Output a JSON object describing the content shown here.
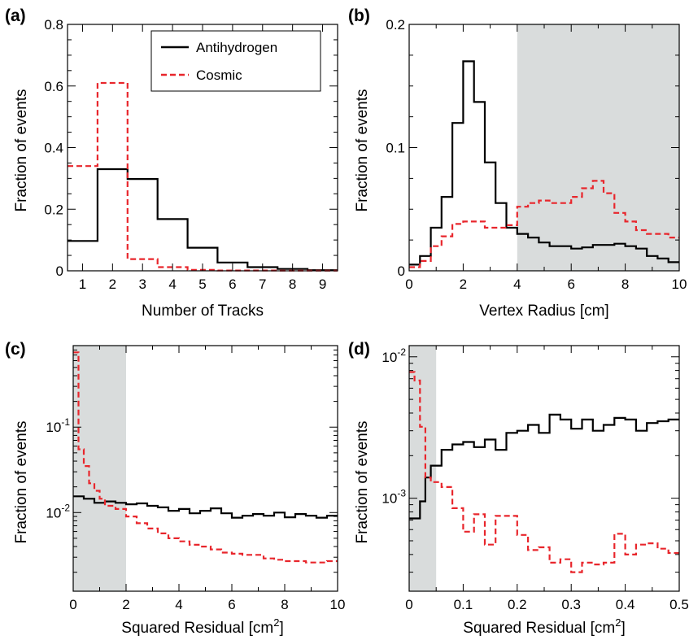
{
  "colors": {
    "antihydrogen": "#000000",
    "cosmic": "#e8262c",
    "shade": "#d9dcdc"
  },
  "legend": {
    "antihydrogen": "Antihydrogen",
    "cosmic": "Cosmic"
  },
  "chart_data": [
    {
      "panel": "(a)",
      "type": "histogram",
      "xlabel": "Number of Tracks",
      "ylabel": "Fraction of events",
      "xlim": [
        0.5,
        9.5
      ],
      "ylim": [
        0,
        0.8
      ],
      "yscale": "linear",
      "x_ticks": [
        1,
        2,
        3,
        4,
        5,
        6,
        7,
        8,
        9
      ],
      "y_ticks": [
        0,
        0.2,
        0.4,
        0.6,
        0.8
      ],
      "y_tick_labels": [
        "0",
        "0.2",
        "0.4",
        "0.6",
        "0.8"
      ],
      "legend_position": "top-right",
      "shaded_region": null,
      "series": [
        {
          "name": "Antihydrogen",
          "style": "solid",
          "bin_edges": [
            0.5,
            1.5,
            2.5,
            3.5,
            4.5,
            5.5,
            6.5,
            7.5,
            8.5,
            9.5
          ],
          "values": [
            0.097,
            0.33,
            0.298,
            0.168,
            0.075,
            0.027,
            0.012,
            0.006,
            0.002
          ]
        },
        {
          "name": "Cosmic",
          "style": "dashed",
          "bin_edges": [
            0.5,
            1.5,
            2.5,
            3.5,
            4.5,
            5.5,
            6.5,
            7.5,
            8.5,
            9.5
          ],
          "values": [
            0.34,
            0.61,
            0.038,
            0.012,
            0.003,
            0.001,
            0.001,
            0.0005,
            0.0005
          ]
        }
      ]
    },
    {
      "panel": "(b)",
      "type": "histogram",
      "xlabel": "Vertex Radius [cm]",
      "ylabel": "Fraction of events",
      "xlim": [
        0,
        10
      ],
      "ylim": [
        0,
        0.2
      ],
      "yscale": "linear",
      "x_ticks": [
        0,
        2,
        4,
        6,
        8,
        10
      ],
      "y_ticks": [
        0,
        0.1,
        0.2
      ],
      "y_tick_labels": [
        "0",
        "0.1",
        "0.2"
      ],
      "shaded_region": [
        4,
        10
      ],
      "series": [
        {
          "name": "Antihydrogen",
          "style": "solid",
          "bin_edges": [
            0,
            0.4,
            0.8,
            1.2,
            1.6,
            2.0,
            2.4,
            2.8,
            3.2,
            3.6,
            4.0,
            4.4,
            4.8,
            5.2,
            5.6,
            6.0,
            6.4,
            6.8,
            7.2,
            7.6,
            8.0,
            8.4,
            8.8,
            9.2,
            9.6,
            10.0
          ],
          "values": [
            0.005,
            0.012,
            0.035,
            0.06,
            0.12,
            0.17,
            0.137,
            0.088,
            0.055,
            0.035,
            0.03,
            0.027,
            0.023,
            0.02,
            0.02,
            0.018,
            0.019,
            0.021,
            0.021,
            0.022,
            0.02,
            0.018,
            0.012,
            0.01,
            0.007
          ]
        },
        {
          "name": "Cosmic",
          "style": "dashed",
          "bin_edges": [
            0,
            0.4,
            0.8,
            1.2,
            1.6,
            2.0,
            2.4,
            2.8,
            3.2,
            3.6,
            4.0,
            4.4,
            4.8,
            5.2,
            5.6,
            6.0,
            6.4,
            6.8,
            7.2,
            7.6,
            8.0,
            8.4,
            8.8,
            9.2,
            9.6,
            10.0
          ],
          "values": [
            0.003,
            0.008,
            0.02,
            0.028,
            0.038,
            0.04,
            0.04,
            0.035,
            0.035,
            0.037,
            0.052,
            0.055,
            0.057,
            0.055,
            0.055,
            0.06,
            0.067,
            0.073,
            0.063,
            0.047,
            0.04,
            0.033,
            0.03,
            0.03,
            0.027
          ]
        }
      ]
    },
    {
      "panel": "(c)",
      "type": "histogram",
      "xlabel": "Squared Residual [cm",
      "xlabel_superscript": "2",
      "xlabel_suffix": "]",
      "ylabel": "Fraction of events",
      "xlim": [
        0,
        10
      ],
      "ylim": [
        0.0012,
        0.9
      ],
      "yscale": "log",
      "x_ticks": [
        0,
        2,
        4,
        6,
        8,
        10
      ],
      "y_major_ticks": [
        0.01,
        0.1
      ],
      "y_tick_labels": [
        {
          "base": "10",
          "exp": "-2",
          "value": 0.01
        },
        {
          "base": "10",
          "exp": "-1",
          "value": 0.1
        }
      ],
      "shaded_region": [
        0,
        2
      ],
      "series": [
        {
          "name": "Antihydrogen",
          "style": "solid",
          "bin_edges": [
            0,
            0.4,
            0.8,
            1.2,
            1.6,
            2.0,
            2.4,
            2.8,
            3.2,
            3.6,
            4.0,
            4.4,
            4.8,
            5.2,
            5.6,
            6.0,
            6.4,
            6.8,
            7.2,
            7.6,
            8.0,
            8.4,
            8.8,
            9.2,
            9.6,
            10.0
          ],
          "values": [
            0.0155,
            0.0145,
            0.013,
            0.0135,
            0.013,
            0.0125,
            0.0128,
            0.012,
            0.0115,
            0.0105,
            0.011,
            0.0098,
            0.0105,
            0.0112,
            0.0098,
            0.0087,
            0.0092,
            0.0096,
            0.0092,
            0.01,
            0.0088,
            0.0096,
            0.0092,
            0.0087,
            0.0092
          ]
        },
        {
          "name": "Cosmic",
          "style": "dashed",
          "bin_edges": [
            0,
            0.2,
            0.4,
            0.6,
            0.8,
            1.0,
            1.2,
            1.6,
            2.0,
            2.4,
            2.8,
            3.2,
            3.6,
            4.0,
            4.4,
            4.8,
            5.2,
            5.6,
            6.0,
            6.4,
            6.8,
            7.2,
            7.6,
            8.0,
            8.4,
            8.8,
            9.2,
            9.6,
            10.0
          ],
          "values": [
            0.75,
            0.055,
            0.035,
            0.022,
            0.018,
            0.0145,
            0.012,
            0.011,
            0.009,
            0.0075,
            0.0065,
            0.0057,
            0.005,
            0.0046,
            0.0042,
            0.004,
            0.0037,
            0.0034,
            0.0033,
            0.0032,
            0.0032,
            0.0029,
            0.0028,
            0.0027,
            0.0027,
            0.0026,
            0.0026,
            0.0027
          ]
        }
      ]
    },
    {
      "panel": "(d)",
      "type": "histogram",
      "xlabel": "Squared Residual [cm",
      "xlabel_superscript": "2",
      "xlabel_suffix": "]",
      "ylabel": "Fraction of events",
      "xlim": [
        0,
        0.5
      ],
      "ylim": [
        0.00022,
        0.012
      ],
      "yscale": "log",
      "x_ticks": [
        0,
        0.1,
        0.2,
        0.3,
        0.4,
        0.5
      ],
      "y_major_ticks": [
        0.001,
        0.01
      ],
      "y_tick_labels": [
        {
          "base": "10",
          "exp": "-3",
          "value": 0.001
        },
        {
          "base": "10",
          "exp": "-2",
          "value": 0.01
        }
      ],
      "shaded_region": [
        0,
        0.05
      ],
      "series": [
        {
          "name": "Antihydrogen",
          "style": "solid",
          "bin_edges": [
            0,
            0.01,
            0.02,
            0.03,
            0.04,
            0.05,
            0.06,
            0.07,
            0.08,
            0.09,
            0.1,
            0.11,
            0.12,
            0.13,
            0.14,
            0.15,
            0.16,
            0.17,
            0.18,
            0.19,
            0.2,
            0.21,
            0.22,
            0.23,
            0.24,
            0.25,
            0.26,
            0.27,
            0.28,
            0.29,
            0.3,
            0.31,
            0.32,
            0.33,
            0.34,
            0.35,
            0.36,
            0.37,
            0.38,
            0.39,
            0.4,
            0.41,
            0.42,
            0.43,
            0.44,
            0.45,
            0.46,
            0.47,
            0.48,
            0.49,
            0.5
          ],
          "values": [
            0.00072,
            0.00072,
            0.00095,
            0.0014,
            0.0017,
            0.0017,
            0.0022,
            0.0022,
            0.0024,
            0.0024,
            0.0025,
            0.0025,
            0.0023,
            0.0023,
            0.0026,
            0.0026,
            0.0022,
            0.0022,
            0.0029,
            0.0029,
            0.003,
            0.003,
            0.0033,
            0.0033,
            0.0029,
            0.0029,
            0.0039,
            0.0039,
            0.0036,
            0.0036,
            0.0031,
            0.0031,
            0.0036,
            0.0036,
            0.003,
            0.003,
            0.0033,
            0.0033,
            0.0037,
            0.0037,
            0.0036,
            0.0036,
            0.003,
            0.003,
            0.0034,
            0.0034,
            0.0035,
            0.0035,
            0.0036,
            0.0036
          ]
        },
        {
          "name": "Cosmic",
          "style": "dashed",
          "bin_edges": [
            0,
            0.01,
            0.02,
            0.03,
            0.04,
            0.05,
            0.06,
            0.07,
            0.08,
            0.09,
            0.1,
            0.11,
            0.12,
            0.13,
            0.14,
            0.15,
            0.16,
            0.17,
            0.18,
            0.19,
            0.2,
            0.21,
            0.22,
            0.23,
            0.24,
            0.25,
            0.26,
            0.27,
            0.28,
            0.29,
            0.3,
            0.31,
            0.32,
            0.33,
            0.34,
            0.35,
            0.36,
            0.37,
            0.38,
            0.39,
            0.4,
            0.41,
            0.42,
            0.43,
            0.44,
            0.45,
            0.46,
            0.47,
            0.48,
            0.49,
            0.5
          ],
          "values": [
            0.0078,
            0.0068,
            0.0032,
            0.0014,
            0.0013,
            0.0013,
            0.0012,
            0.0012,
            0.00085,
            0.00085,
            0.00058,
            0.00058,
            0.00077,
            0.00077,
            0.00047,
            0.00047,
            0.00075,
            0.00075,
            0.00075,
            0.00075,
            0.00055,
            0.00055,
            0.00043,
            0.00043,
            0.00045,
            0.00045,
            0.00035,
            0.00035,
            0.00037,
            0.00037,
            0.0003,
            0.0003,
            0.00035,
            0.00035,
            0.00034,
            0.00034,
            0.00035,
            0.00035,
            0.00056,
            0.00056,
            0.0004,
            0.0004,
            0.00047,
            0.00047,
            0.00048,
            0.00048,
            0.00044,
            0.00044,
            0.00041,
            0.00041
          ]
        }
      ]
    }
  ]
}
